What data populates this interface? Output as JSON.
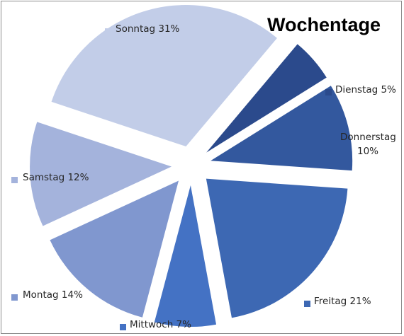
{
  "chart_data": {
    "type": "pie",
    "title": "Wochentage",
    "start_angle_deg": 40,
    "direction": "clockwise",
    "exploded": true,
    "legend_placement": "labels-outside",
    "slices": [
      {
        "label": "Dienstag",
        "value": 5,
        "label_text": "Dienstag 5%",
        "color": "#2b4a8c"
      },
      {
        "label": "Donnerstag",
        "value": 10,
        "label_text": [
          "Donnerstag",
          "10%"
        ],
        "color": "#33589e"
      },
      {
        "label": "Freitag",
        "value": 21,
        "label_text": "Freitag 21%",
        "color": "#3d68b3"
      },
      {
        "label": "Mittwoch",
        "value": 7,
        "label_text": "Mittwoch 7%",
        "color": "#4472c4"
      },
      {
        "label": "Montag",
        "value": 14,
        "label_text": "Montag 14%",
        "color": "#8097cf"
      },
      {
        "label": "Samstag",
        "value": 12,
        "label_text": "Samstag 12%",
        "color": "#a4b3dc"
      },
      {
        "label": "Sonntag",
        "value": 31,
        "label_text": "Sonntag 31%",
        "color": "#c2cde8"
      }
    ]
  }
}
